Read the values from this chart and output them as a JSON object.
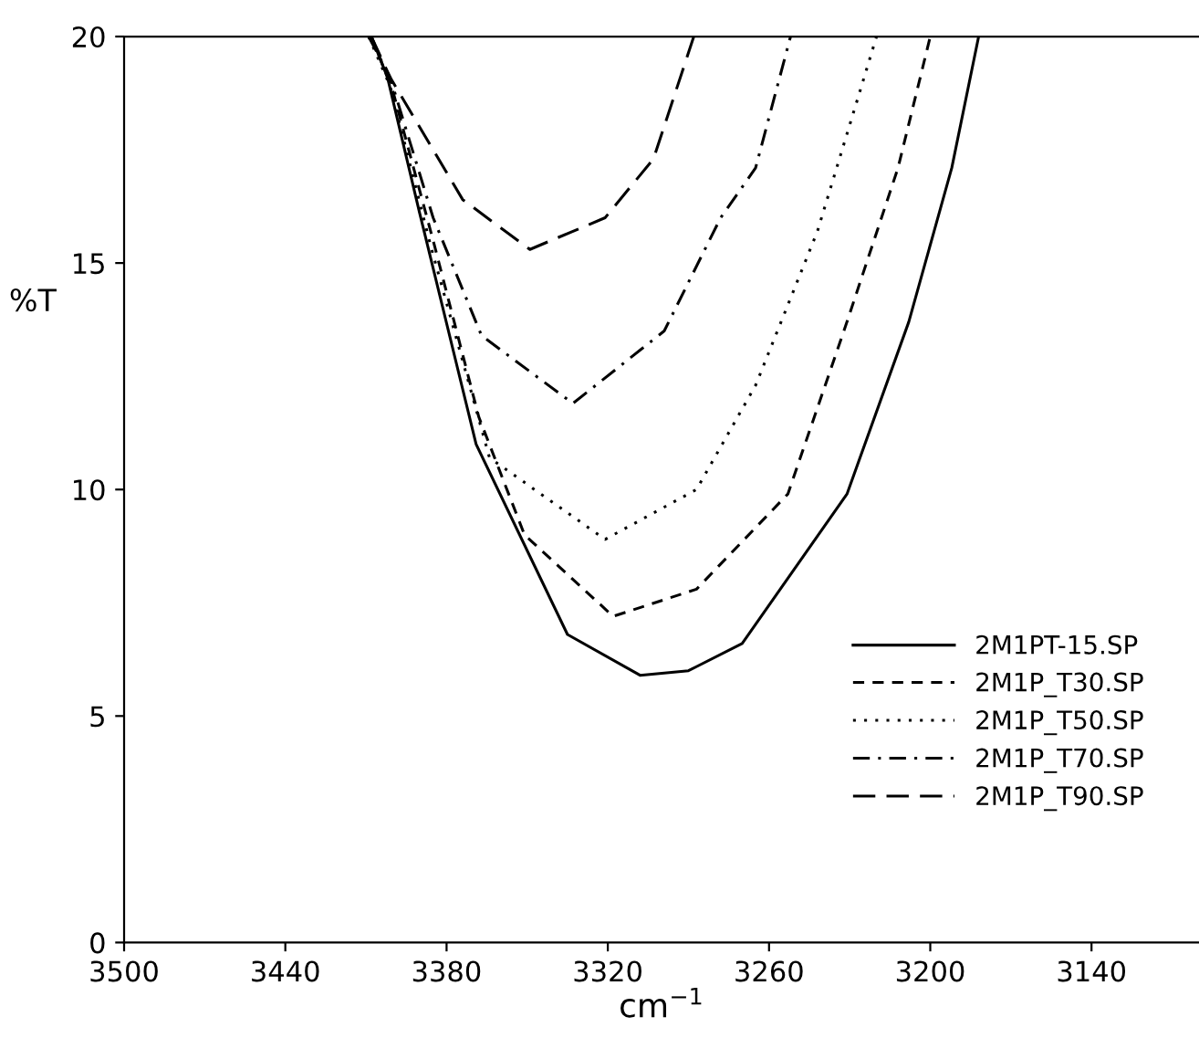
{
  "chart_data": {
    "type": "line",
    "xlabel": "cm$^{−1}$",
    "ylabel": "%T",
    "xlim": [
      3500,
      3100
    ],
    "ylim": [
      0,
      20
    ],
    "xticks": [
      3500,
      3440,
      3380,
      3320,
      3260,
      3200,
      3140
    ],
    "yticks": [
      0,
      5,
      10,
      15,
      20
    ],
    "grid": false,
    "legend": "bottom right",
    "marker": "none",
    "series": [
      {
        "name": "2M1PT-15.SP",
        "color": "#000000",
        "line_style": "solid",
        "x": [
          3408,
          3402,
          3390,
          3369,
          3335,
          3308,
          3290,
          3270,
          3231,
          3208,
          3192,
          3182
        ],
        "values": [
          20,
          19.1,
          16.1,
          11.0,
          6.8,
          5.9,
          6.0,
          6.6,
          9.9,
          13.7,
          17.1,
          20
        ]
      },
      {
        "name": "2M1P_T30.SP",
        "color": "#000000",
        "line_style": "dashed",
        "x": [
          3408,
          3400,
          3385,
          3368,
          3351,
          3318,
          3287,
          3253,
          3231,
          3212,
          3200
        ],
        "values": [
          20,
          18.8,
          15.5,
          11.6,
          9.0,
          7.2,
          7.8,
          9.9,
          13.7,
          17.1,
          20
        ]
      },
      {
        "name": "2M1P_T50.SP",
        "color": "#000000",
        "line_style": "dotted",
        "x": [
          3409,
          3401,
          3386,
          3364,
          3321,
          3287,
          3265,
          3242,
          3220
        ],
        "values": [
          20,
          18.9,
          15.4,
          10.7,
          8.9,
          10.0,
          12.3,
          15.7,
          20
        ]
      },
      {
        "name": "2M1P_T70.SP",
        "color": "#000000",
        "line_style": "dashdot",
        "x": [
          3409,
          3401,
          3385,
          3367,
          3333,
          3299,
          3278,
          3265,
          3252
        ],
        "values": [
          20,
          19.1,
          16.0,
          13.4,
          11.9,
          13.5,
          16.0,
          17.1,
          20
        ]
      },
      {
        "name": "2M1P_T90.SP",
        "color": "#000000",
        "line_style": "longdash",
        "x": [
          3408,
          3401,
          3374,
          3349,
          3321,
          3303,
          3288
        ],
        "values": [
          20,
          19.1,
          16.4,
          15.3,
          16.0,
          17.3,
          20
        ]
      }
    ]
  }
}
